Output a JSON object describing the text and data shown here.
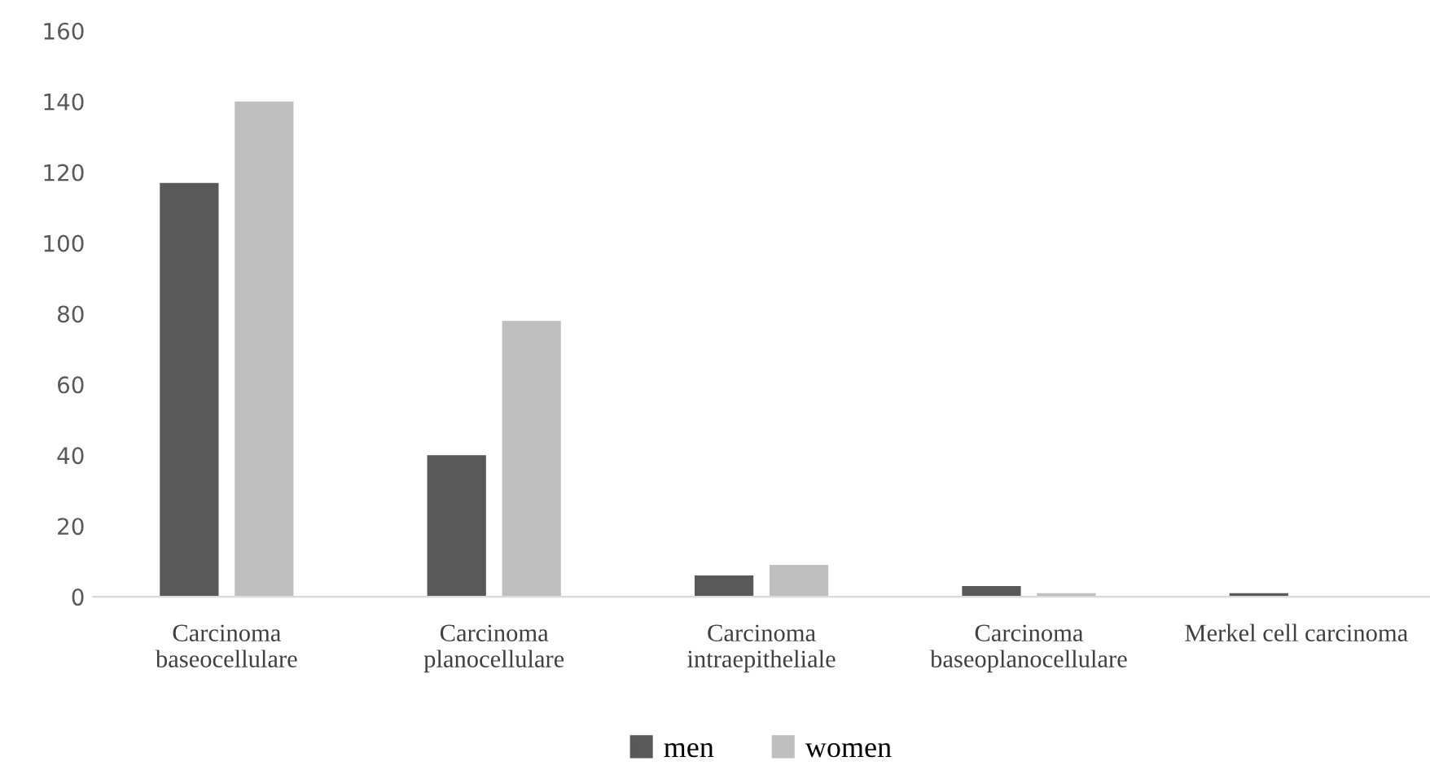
{
  "chart_data": {
    "type": "bar",
    "categories": [
      "Carcinoma\nbaseocellulare",
      "Carcinoma\nplanocellulare",
      "Carcinoma\nintraepitheliale",
      "Carcinoma\nbaseoplanocellulare",
      "Merkel cell carcinoma"
    ],
    "series": [
      {
        "name": "men",
        "color": "#595959",
        "values": [
          117,
          40,
          6,
          3,
          1
        ]
      },
      {
        "name": "women",
        "color": "#bfbfbf",
        "values": [
          140,
          78,
          9,
          1,
          0
        ]
      }
    ],
    "ylim": [
      0,
      160
    ],
    "yticks": [
      0,
      20,
      40,
      60,
      80,
      100,
      120,
      140,
      160
    ],
    "grid": false,
    "legend": "bottom"
  }
}
